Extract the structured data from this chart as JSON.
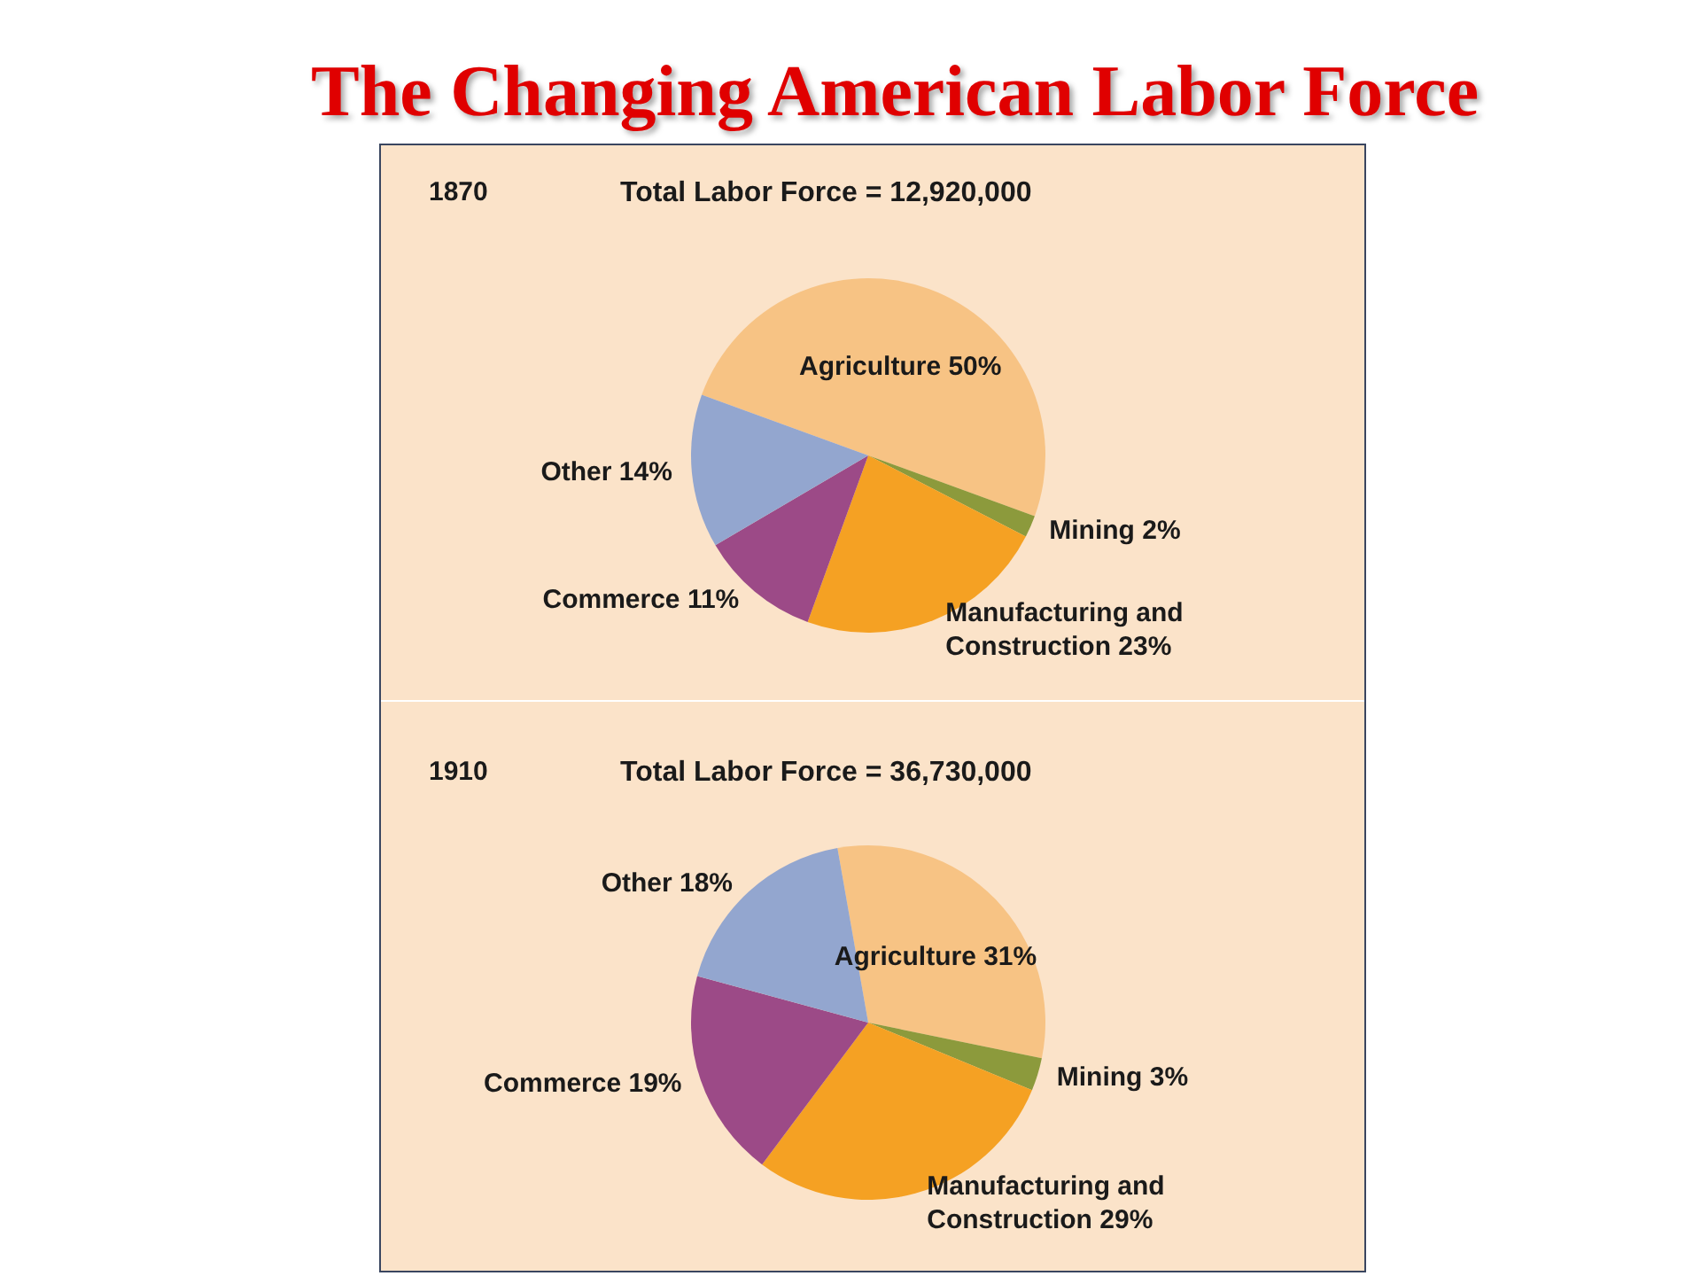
{
  "chart_data": [
    {
      "type": "pie",
      "title": "1870",
      "subtitle": "Total Labor Force = 12,920,000",
      "annotations": [
        "The Changing American Labor Force"
      ],
      "categories": [
        "Agriculture",
        "Mining",
        "Manufacturing and Construction",
        "Commerce",
        "Other"
      ],
      "values": [
        50,
        2,
        23,
        11,
        14
      ],
      "value_labels": [
        "50%",
        "2%",
        "23%",
        "11%",
        "14%"
      ],
      "colors": [
        "#f7c384",
        "#8c9a3c",
        "#f5a123",
        "#9c4a87",
        "#93a6cf"
      ]
    },
    {
      "type": "pie",
      "title": "1910",
      "subtitle": "Total Labor Force = 36,730,000",
      "categories": [
        "Agriculture",
        "Mining",
        "Manufacturing and Construction",
        "Commerce",
        "Other"
      ],
      "values": [
        31,
        3,
        29,
        19,
        18
      ],
      "value_labels": [
        "31%",
        "3%",
        "29%",
        "19%",
        "18%"
      ],
      "colors": [
        "#f7c384",
        "#8c9a3c",
        "#f5a123",
        "#9c4a87",
        "#93a6cf"
      ]
    }
  ]
}
